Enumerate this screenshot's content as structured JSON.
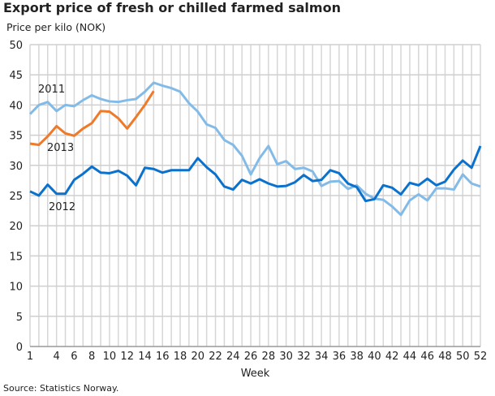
{
  "chart_data": {
    "type": "line",
    "title": "Export price of fresh or chilled farmed salmon",
    "ylabel": "Price per kilo (NOK)",
    "xlabel": "Week",
    "source": "Source: Statistics Norway.",
    "ylim": [
      0,
      50
    ],
    "yticks": [
      0,
      5,
      10,
      15,
      20,
      25,
      30,
      35,
      40,
      45,
      50
    ],
    "xlim": [
      1,
      52
    ],
    "xticks": [
      1,
      4,
      6,
      8,
      10,
      12,
      14,
      16,
      18,
      20,
      22,
      24,
      26,
      28,
      30,
      32,
      34,
      36,
      38,
      40,
      42,
      44,
      46,
      48,
      50,
      52
    ],
    "grid": true,
    "series": [
      {
        "name": "2011",
        "color": "#83bbe8",
        "values": [
          38.5,
          40,
          40.5,
          39,
          40,
          39.8,
          40.8,
          41.6,
          41,
          40.6,
          40.5,
          40.8,
          41,
          42.2,
          43.7,
          43.2,
          42.8,
          42.2,
          40.3,
          38.9,
          36.8,
          36.2,
          34.2,
          33.4,
          31.6,
          28.5,
          31.2,
          33.2,
          30.2,
          30.7,
          29.4,
          29.6,
          29,
          26.6,
          27.3,
          27.4,
          26.1,
          26.7,
          25.3,
          24.5,
          24.3,
          23.2,
          21.8,
          24.2,
          25.2,
          24.2,
          26.2,
          26.2,
          26,
          28.5,
          27,
          26.5
        ]
      },
      {
        "name": "2012",
        "color": "#0a72cc",
        "values": [
          25.7,
          25,
          26.8,
          25.3,
          25.3,
          27.6,
          28.6,
          29.8,
          28.8,
          28.7,
          29.1,
          28.3,
          26.7,
          29.6,
          29.4,
          28.8,
          29.2,
          29.2,
          29.2,
          31.2,
          29.7,
          28.5,
          26.5,
          26,
          27.6,
          27,
          27.7,
          27,
          26.5,
          26.6,
          27.2,
          28.4,
          27.4,
          27.6,
          29.2,
          28.7,
          27,
          26.4,
          24.1,
          24.4,
          26.7,
          26.3,
          25.2,
          27.1,
          26.7,
          27.8,
          26.7,
          27.3,
          29.3,
          30.8,
          29.6,
          33.2
        ]
      },
      {
        "name": "2013",
        "color": "#ee7a2a",
        "values": [
          33.6,
          33.4,
          34.8,
          36.5,
          35.3,
          34.9,
          36.1,
          37,
          39,
          38.9,
          37.8,
          36.1,
          38,
          40,
          42.3
        ]
      }
    ]
  }
}
